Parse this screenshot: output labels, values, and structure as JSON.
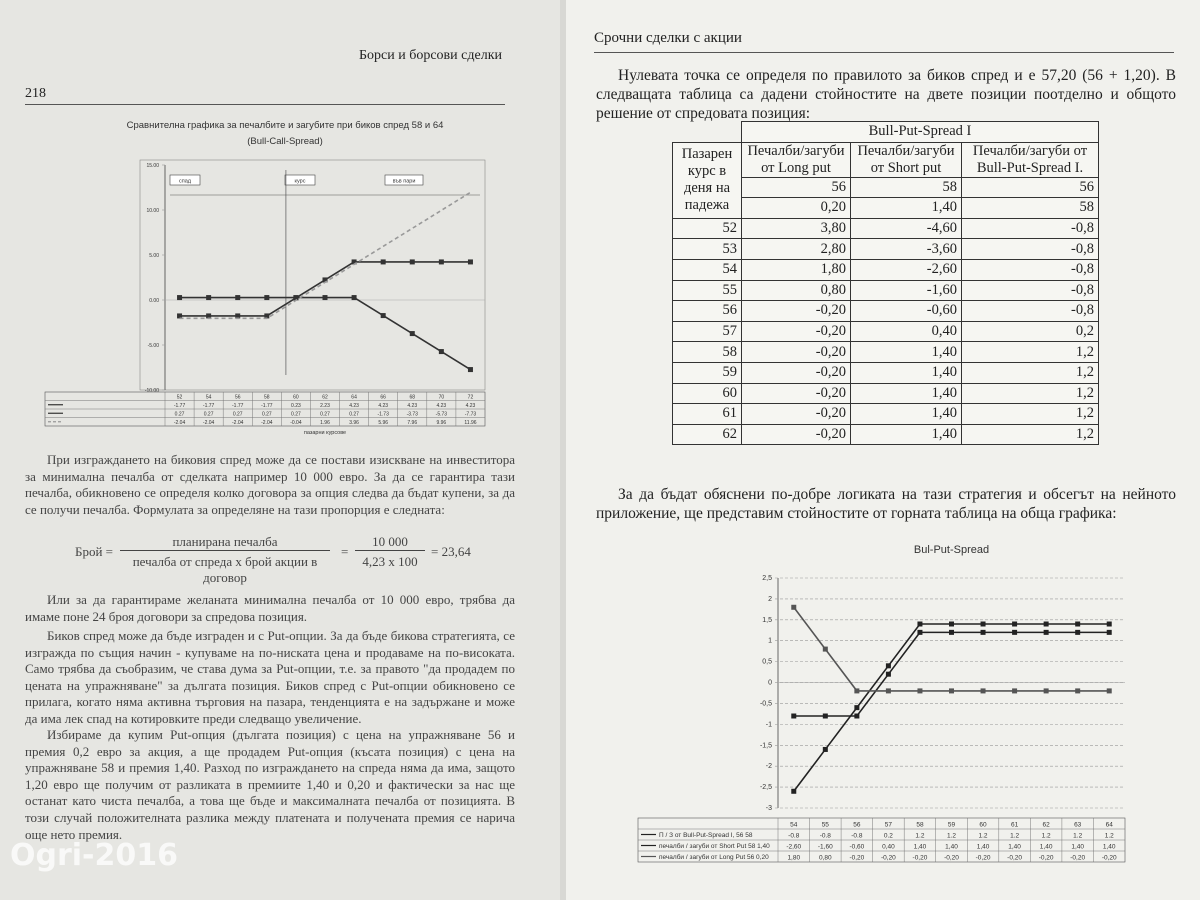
{
  "left_page": {
    "header": "Борси и борсови сделки",
    "page_number": "218",
    "paragraphs": [
      "При изграждането на биковия спред може да се постави изискване на инвеститора за минимална печалба от сделката например 10 000 евро. За да се гарантира тази печалба, обикновено се определя колко договора за опция следва да бъдат купени, за да се получи печалба. Формулата за определяне на тази пропорция е следната:"
    ],
    "formula": {
      "lhs": "Брой =",
      "numerator": "планирана печалба",
      "denominator": "печалба от спреда х брой акции в договор",
      "equals": "=",
      "numerator2": "10 000",
      "denominator2": "4,23 x 100",
      "result": "= 23,64"
    },
    "paragraphs_after": [
      "Или за да гарантираме желаната минимална печалба от 10 000 евро, трябва да имаме поне 24 броя договори за спредова позиция.",
      "Биков спред може да бъде изграден и с Put-опции. За да бъде бикова стратегията, се изгражда по същия начин - купуваме на по-ниската цена и продаваме на по-високата. Само трябва да съобразим, че става дума за Put-опции, т.е. за правото \"да продадем по цената на упражняване\" за дългата позиция. Биков спред с Put-опции обикновено се прилага, когато няма активна търговия на пазара, тенденцията е на задържане и може да има лек спад на котировките преди следващо увеличение.",
      "Избираме да купим Put-опция (дългата позиция) с цена на упражняване 56 и премия 0,2 евро за акция, а ще продадем Put-опция (късата позиция) с цена на упражняване 58 и премия 1,40. Разход по изграждането на спреда няма да има, защото 1,20 евро ще получим от разликата в премиите 1,40 и 0,20 и фактически за нас ще останат като чиста печалба, а това ще бъде и максималната печалба от позицията. В този случай положителната разлика между платената и получената премия се нарича още нето премия."
    ]
  },
  "right_page": {
    "header": "Срочни сделки с акции",
    "intro": "Нулевата точка се определя по правилото за биков спред и е 57,20 (56 + 1,20). В следващата таблица са дадени стойностите на двете позиции поотделно и общото решение от спредовата позиция:",
    "table": {
      "title": "Bull-Put-Spread I",
      "corner": "Пазарен курс в деня на падежа",
      "columns": [
        "Печалби/загуби от Long put",
        "Печалби/загуби от Short put",
        "Печалби/загуби от Bull-Put-Spread I."
      ],
      "parameters": [
        [
          "56",
          "58",
          "56"
        ],
        [
          "0,20",
          "1,40",
          "58"
        ]
      ],
      "rows": [
        [
          "52",
          "3,80",
          "-4,60",
          "-0,8"
        ],
        [
          "53",
          "2,80",
          "-3,60",
          "-0,8"
        ],
        [
          "54",
          "1,80",
          "-2,60",
          "-0,8"
        ],
        [
          "55",
          "0,80",
          "-1,60",
          "-0,8"
        ],
        [
          "56",
          "-0,20",
          "-0,60",
          "-0,8"
        ],
        [
          "57",
          "-0,20",
          "0,40",
          "0,2"
        ],
        [
          "58",
          "-0,20",
          "1,40",
          "1,2"
        ],
        [
          "59",
          "-0,20",
          "1,40",
          "1,2"
        ],
        [
          "60",
          "-0,20",
          "1,40",
          "1,2"
        ],
        [
          "61",
          "-0,20",
          "1,40",
          "1,2"
        ],
        [
          "62",
          "-0,20",
          "1,40",
          "1,2"
        ]
      ]
    },
    "outro": "За да бъдат обяснени по-добре логиката на тази стратегия и обсегът на нейното приложение, ще представим стойностите от горната таблица на обща графика:"
  },
  "watermark": "Ogri-2016",
  "chart_data": [
    {
      "type": "line",
      "title": "Сравнителна графика за печалбите и загубите при биков спред 58 и 64",
      "subtitle": "(Bull-Call-Spread)",
      "x_label": "пазарни курсове",
      "annotations": [
        "спад",
        "курс",
        "във пари"
      ],
      "categories": [
        "52",
        "54",
        "56",
        "58",
        "60",
        "62",
        "64",
        "66",
        "68",
        "70",
        "72"
      ],
      "series": [
        {
          "color": "#333333",
          "values": [
            -1.77,
            -1.77,
            -1.77,
            -1.77,
            0.23,
            2.23,
            4.23,
            4.23,
            4.23,
            4.23,
            4.23
          ]
        },
        {
          "color": "#333333",
          "values": [
            0.27,
            0.27,
            0.27,
            0.27,
            0.27,
            0.27,
            0.27,
            -1.73,
            -3.73,
            -5.73,
            -7.73
          ]
        },
        {
          "color": "#999999",
          "dashed": true,
          "values": [
            -2.04,
            -2.04,
            -2.04,
            -2.04,
            -0.04,
            1.96,
            3.96,
            5.96,
            7.96,
            9.96,
            11.96
          ]
        }
      ],
      "ylim": [
        -10,
        15
      ],
      "yticks": [
        {
          "value": 15,
          "label": "15.00"
        },
        {
          "value": 10,
          "label": "10.00"
        },
        {
          "value": 5,
          "label": "5.00"
        },
        {
          "value": 0,
          "label": "0.00"
        },
        {
          "value": -5,
          "label": "-5.00"
        },
        {
          "value": -10,
          "label": "-10.00"
        }
      ],
      "grid": false
    },
    {
      "type": "line",
      "title": "Bul-Put-Spread",
      "categories": [
        "54",
        "55",
        "56",
        "57",
        "58",
        "59",
        "60",
        "61",
        "62",
        "63",
        "64"
      ],
      "series": [
        {
          "name": "П / З от Bull-Put-Spread I, 56 58",
          "color": "#222222",
          "values": [
            -0.8,
            -0.8,
            -0.8,
            0.2,
            1.2,
            1.2,
            1.2,
            1.2,
            1.2,
            1.2,
            1.2
          ]
        },
        {
          "name": "печалби / загуби от Short Put 58 1,40",
          "color": "#222222",
          "values": [
            -2.6,
            -1.6,
            -0.6,
            0.4,
            1.4,
            1.4,
            1.4,
            1.4,
            1.4,
            1.4,
            1.4
          ],
          "value_labels": [
            "-2,60",
            "-1,60",
            "-0,60",
            "0,40",
            "1,40",
            "1,40",
            "1,40",
            "1,40",
            "1,40",
            "1,40",
            "1,40"
          ]
        },
        {
          "name": "печалби / загуби от Long Put 56 0,20",
          "color": "#555555",
          "values": [
            1.8,
            0.8,
            -0.2,
            -0.2,
            -0.2,
            -0.2,
            -0.2,
            -0.2,
            -0.2,
            -0.2,
            -0.2
          ],
          "value_labels": [
            "1,80",
            "0,80",
            "-0,20",
            "-0,20",
            "-0,20",
            "-0,20",
            "-0,20",
            "-0,20",
            "-0,20",
            "-0,20",
            "-0,20"
          ]
        }
      ],
      "ylim": [
        -3,
        2.5
      ],
      "yticks": [
        {
          "value": 2.5,
          "label": "2,5"
        },
        2,
        {
          "value": 1.5,
          "label": "1,5"
        },
        1,
        {
          "value": 0.5,
          "label": "0,5"
        },
        0,
        {
          "value": -0.5,
          "label": "-0,5"
        },
        -1,
        {
          "value": -1.5,
          "label": "-1,5"
        },
        -2,
        {
          "value": -2.5,
          "label": "-2,5"
        },
        -3
      ],
      "grid": true
    }
  ]
}
